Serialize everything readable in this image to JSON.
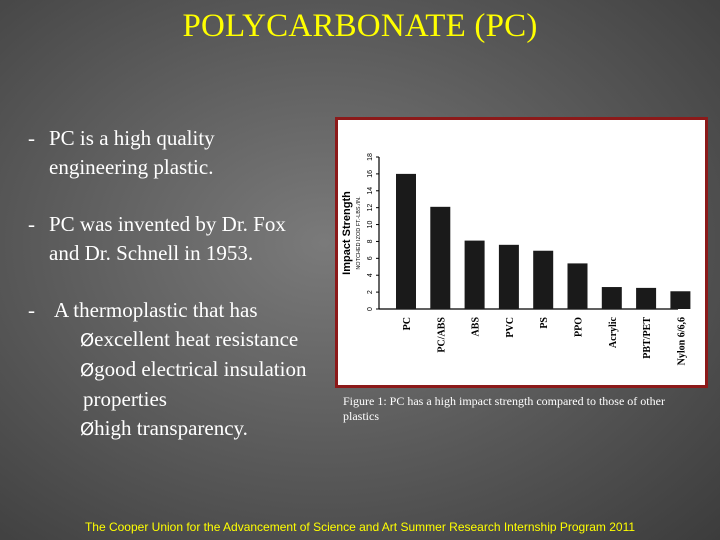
{
  "title": "POLYCARBONATE (PC)",
  "bullets": [
    {
      "dash": "-",
      "lines": [
        "PC is a high quality",
        "engineering plastic."
      ]
    },
    {
      "dash": "-",
      "lines": [
        "PC was invented by Dr. Fox",
        "and Dr. Schnell in 1953."
      ]
    },
    {
      "dash": "-",
      "lead": "A thermoplastic that has",
      "subitems": [
        {
          "arrow": "Ø",
          "text": "excellent heat resistance"
        },
        {
          "arrow": "Ø",
          "text": "good electrical insulation"
        },
        {
          "arrow": "",
          "text": "properties"
        },
        {
          "arrow": "Ø",
          "text": "high transparency."
        }
      ]
    }
  ],
  "chart_data": {
    "type": "bar",
    "ylabel": "Impact Strength",
    "ylabel_sub": "NOTCHED IZOD FT.-LBS./IN.",
    "ylim": [
      0,
      18
    ],
    "yticks": [
      "0",
      "2",
      "4",
      "6",
      "8",
      "10",
      "12",
      "14",
      "16",
      "18"
    ],
    "categories": [
      "PC",
      "PC/ABS",
      "ABS",
      "PVC",
      "PS",
      "PPO",
      "Acrylic",
      "PBT/PET",
      "Nylon 6/6,6"
    ],
    "values": [
      16,
      12.1,
      8.1,
      7.6,
      6.9,
      5.4,
      2.6,
      2.5,
      2.1
    ],
    "colors": {
      "bar": "#1a1a1a",
      "frame": "#8c1a1a"
    }
  },
  "caption": "Figure 1: PC has a high impact strength compared to those of other plastics",
  "footer": "The Cooper Union for the Advancement of Science and Art Summer Research Internship Program 2011"
}
